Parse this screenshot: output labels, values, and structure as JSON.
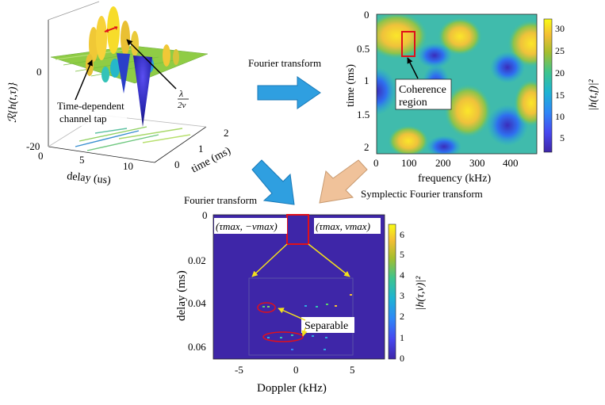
{
  "panel_3d": {
    "z_ticks": [
      "0",
      "-20"
    ],
    "delay_ticks": [
      "0",
      "5",
      "10"
    ],
    "time_ticks": [
      "0",
      "1",
      "2"
    ],
    "delay_label": "delay (us)",
    "time_label": "time (ms)",
    "z_label": "ℛ{h(t,τ)}",
    "annotation_tap": [
      "Time-dependent",
      "channel tap"
    ],
    "annotation_lambda_num": "λ",
    "annotation_lambda_den": "2v"
  },
  "arrows": {
    "top": "Fourier transform",
    "bottom_left": "Fourier transform",
    "bottom_right": "Symplectic Fourier transform"
  },
  "panel_tf": {
    "xlabel": "frequency (kHz)",
    "ylabel": "time (ms)",
    "xticks": [
      "0",
      "100",
      "200",
      "300",
      "400"
    ],
    "yticks": [
      "0",
      "0.5",
      "1",
      "1.5",
      "2"
    ],
    "colorbar_ticks": [
      "30",
      "25",
      "20",
      "15",
      "10",
      "5"
    ],
    "colorbar_label": "|h(t,f)|²",
    "annotation": [
      "Coherence",
      "region"
    ]
  },
  "panel_dd": {
    "xlabel": "Doppler (kHz)",
    "ylabel": "delay (ms)",
    "xticks": [
      "-5",
      "0",
      "5"
    ],
    "yticks": [
      "0",
      "0.02",
      "0.04",
      "0.06"
    ],
    "colorbar_ticks": [
      "6",
      "5",
      "4",
      "3",
      "2",
      "1",
      "0"
    ],
    "colorbar_label": "|h(τ,ν)|²",
    "label_left": "(τmax, −νmax)",
    "label_right": "(τmax, νmax)",
    "annotation": "Separable"
  },
  "colors": {
    "blue_arrow": "#2f9fe0",
    "tan_arrow": "#f0c29a",
    "yellow": "#f4e01c",
    "red": "#e0101a",
    "parula_dark": "#3e26a8"
  }
}
